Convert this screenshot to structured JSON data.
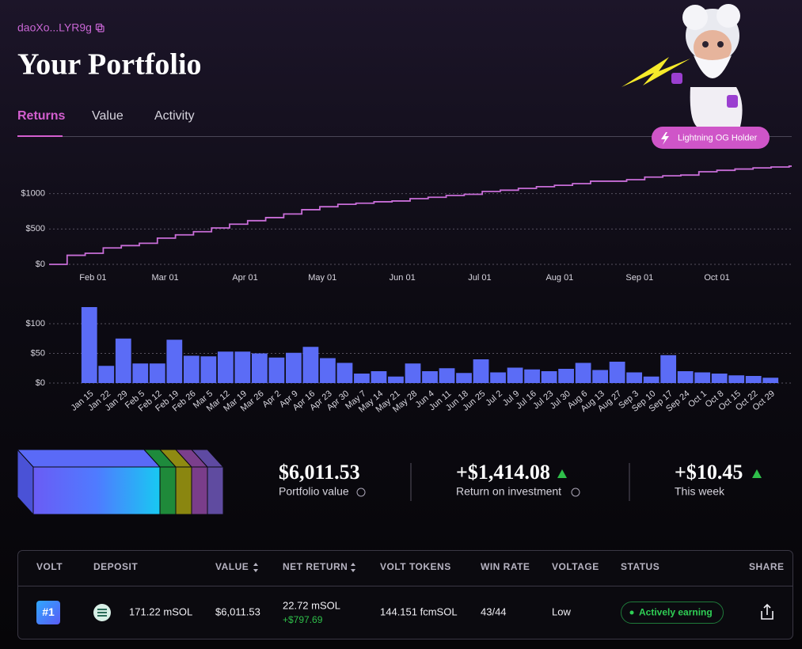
{
  "header": {
    "address": "daoXo...LYR9g",
    "title": "Your Portfolio",
    "tabs": [
      "Returns",
      "Value",
      "Activity"
    ],
    "badge": "Lightning OG Holder"
  },
  "chart_data": [
    {
      "type": "line",
      "drawstyle": "steps-post",
      "color": "#c86dd7",
      "grid": true,
      "x": [
        "Jan 15",
        "Jan 22",
        "Jan 29",
        "Feb 5",
        "Feb 12",
        "Feb 19",
        "Feb 26",
        "Mar 5",
        "Mar 12",
        "Mar 19",
        "Mar 26",
        "Apr 2",
        "Apr 9",
        "Apr 16",
        "Apr 23",
        "Apr 30",
        "May 7",
        "May 14",
        "May 21",
        "May 28",
        "Jun 4",
        "Jun 11",
        "Jun 18",
        "Jun 25",
        "Jul 2",
        "Jul 9",
        "Jul 16",
        "Jul 23",
        "Jul 30",
        "Aug 6",
        "Aug 13",
        "Aug 27",
        "Sep 3",
        "Sep 10",
        "Sep 17",
        "Sep 24",
        "Oct 1",
        "Oct 8",
        "Oct 15",
        "Oct 22",
        "Oct 29"
      ],
      "values": [
        0,
        128,
        157,
        232,
        265,
        298,
        371,
        417,
        462,
        515,
        568,
        618,
        661,
        712,
        773,
        815,
        849,
        865,
        885,
        896,
        929,
        949,
        974,
        991,
        1031,
        1049,
        1075,
        1098,
        1118,
        1142,
        1176,
        1198,
        1234,
        1252,
        1263,
        1310,
        1330,
        1348,
        1364,
        1377,
        1389
      ],
      "xlim": [
        "Jan 15",
        "Oct 30"
      ],
      "xticks": [
        "Feb 01",
        "Mar 01",
        "Apr 01",
        "May 01",
        "Jun 01",
        "Jul 01",
        "Aug 01",
        "Sep 01",
        "Oct 01"
      ],
      "ylim": [
        0,
        1500
      ],
      "yticks": [
        {
          "value": 0,
          "label": "$0"
        },
        {
          "value": 500,
          "label": "$500"
        },
        {
          "value": 1000,
          "label": "$1000"
        }
      ]
    },
    {
      "type": "bar",
      "color": "#5b6cf6",
      "grid": true,
      "categories": [
        "Jan 15",
        "Jan 22",
        "Jan 29",
        "Feb 5",
        "Feb 12",
        "Feb 19",
        "Feb 26",
        "Mar 5",
        "Mar 12",
        "Mar 19",
        "Mar 26",
        "Apr 2",
        "Apr 9",
        "Apr 16",
        "Apr 23",
        "Apr 30",
        "May 7",
        "May 14",
        "May 21",
        "May 28",
        "Jun 4",
        "Jun 11",
        "Jun 18",
        "Jun 25",
        "Jul 2",
        "Jul 9",
        "Jul 16",
        "Jul 23",
        "Jul 30",
        "Aug 6",
        "Aug 13",
        "Aug 27",
        "Sep 3",
        "Sep 10",
        "Sep 17",
        "Sep 24",
        "Oct 1",
        "Oct 8",
        "Oct 15",
        "Oct 22",
        "Oct 29"
      ],
      "values": [
        128,
        29,
        75,
        33,
        33,
        73,
        46,
        45,
        53,
        53,
        50,
        43,
        51,
        61,
        42,
        34,
        16,
        20,
        11,
        33,
        20,
        25,
        17,
        40,
        18,
        26,
        23,
        20,
        24,
        34,
        22,
        36,
        18,
        11,
        47,
        20,
        18,
        16,
        13,
        12,
        9
      ],
      "ylim": [
        0,
        150
      ],
      "yticks": [
        {
          "value": 0,
          "label": "$0"
        },
        {
          "value": 50,
          "label": "$50"
        },
        {
          "value": 100,
          "label": "$100"
        }
      ]
    }
  ],
  "stats": [
    {
      "value": "$6,011.53",
      "label": "Portfolio value"
    },
    {
      "value": "+$1,414.08",
      "label": "Return on investment"
    },
    {
      "value": "+$10.45",
      "label": "This week"
    }
  ],
  "table": {
    "headers": [
      "VOLT",
      "DEPOSIT",
      "VALUE",
      "NET RETURN",
      "VOLT TOKENS",
      "WIN RATE",
      "VOLTAGE",
      "STATUS",
      "SHARE"
    ],
    "rows": [
      [
        "#1",
        "171.22 mSOL",
        "$6,011.53",
        [
          "22.72 mSOL",
          "+$797.69"
        ],
        "144.151 fcmSOL",
        "43/44",
        "Low",
        "Actively earning"
      ]
    ]
  }
}
